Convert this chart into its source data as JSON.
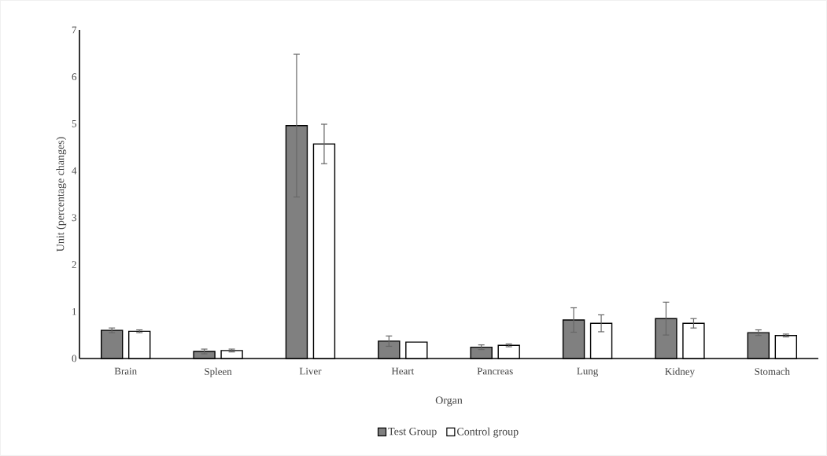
{
  "chart_data": {
    "type": "bar",
    "xlabel": "Organ",
    "ylabel": "Unit (percentage changes)",
    "categories": [
      "Brain",
      "Spleen",
      "Liver",
      "Heart",
      "Pancreas",
      "Lung",
      "Kidney",
      "Stomach"
    ],
    "series": [
      {
        "name": "Test Group",
        "color": "#808080",
        "values": [
          0.6,
          0.15,
          4.96,
          0.37,
          0.24,
          0.82,
          0.85,
          0.55
        ],
        "errors": [
          0.05,
          0.05,
          1.52,
          0.11,
          0.05,
          0.26,
          0.35,
          0.06
        ]
      },
      {
        "name": "Control group",
        "color": "#ffffff",
        "values": [
          0.58,
          0.17,
          4.57,
          0.35,
          0.28,
          0.75,
          0.75,
          0.49
        ],
        "errors": [
          0.03,
          0.03,
          0.42,
          null,
          0.03,
          0.18,
          0.1,
          0.03
        ]
      }
    ],
    "ylim": [
      0,
      7
    ],
    "yticks": [
      0,
      1,
      2,
      3,
      4,
      5,
      6,
      7
    ],
    "legend": "bottom"
  }
}
